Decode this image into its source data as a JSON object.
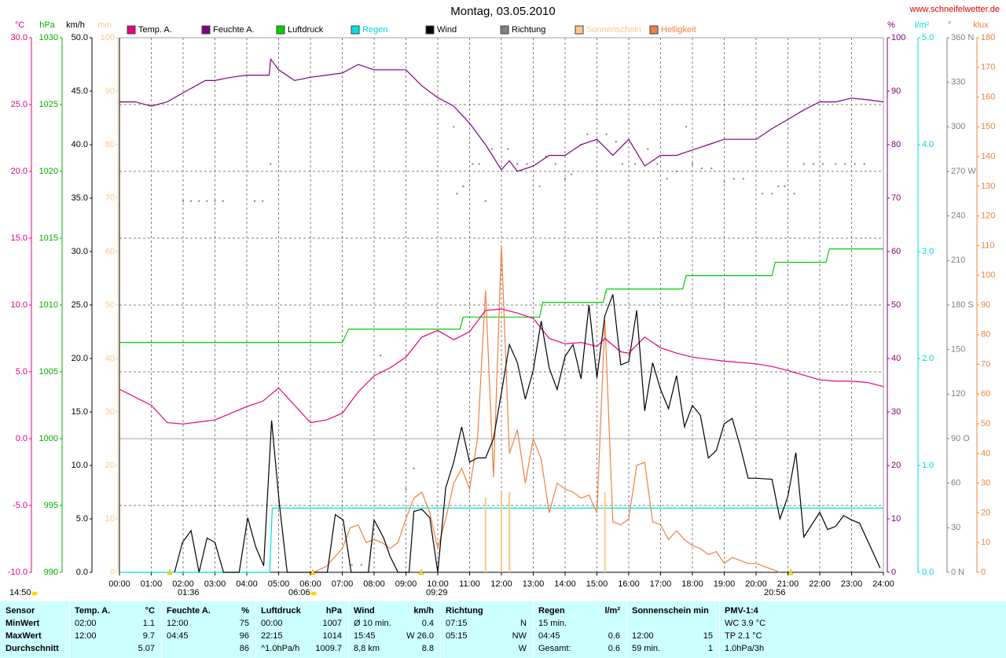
{
  "chart_data": {
    "type": "line",
    "title": "Montag, 03.05.2010",
    "source": "www.schneifelwetter.de",
    "xlim": [
      0,
      24
    ],
    "xticks": [
      {
        "value": 0,
        "label": "00:00"
      },
      {
        "value": 1,
        "label": "01:00"
      },
      {
        "value": 2,
        "label": "02:00"
      },
      {
        "value": 3,
        "label": "03:00"
      },
      {
        "value": 4,
        "label": "04:00"
      },
      {
        "value": 5,
        "label": "05:00"
      },
      {
        "value": 6,
        "label": "06:00"
      },
      {
        "value": 7,
        "label": "07:00"
      },
      {
        "value": 8,
        "label": "08:00"
      },
      {
        "value": 9,
        "label": "09:00"
      },
      {
        "value": 10,
        "label": "10:00"
      },
      {
        "value": 11,
        "label": "11:00"
      },
      {
        "value": 12,
        "label": "12:00"
      },
      {
        "value": 13,
        "label": "13:00"
      },
      {
        "value": 14,
        "label": "14:00"
      },
      {
        "value": 15,
        "label": "15:00"
      },
      {
        "value": 16,
        "label": "16:00"
      },
      {
        "value": 17,
        "label": "17:00"
      },
      {
        "value": 18,
        "label": "18:00"
      },
      {
        "value": 19,
        "label": "19:00"
      },
      {
        "value": 20,
        "label": "20:00"
      },
      {
        "value": 21,
        "label": "21:00"
      },
      {
        "value": 22,
        "label": "22:00"
      },
      {
        "value": 23,
        "label": "23:00"
      },
      {
        "value": 24,
        "label": "24:00"
      }
    ],
    "grid": true,
    "axes": [
      {
        "name": "°C",
        "color": "#e6007e",
        "lim": [
          -10,
          30
        ],
        "ticks": [
          {
            "value": 30,
            "label": "30.0"
          },
          {
            "value": 25,
            "label": "25.0"
          },
          {
            "value": 20,
            "label": "20.0"
          },
          {
            "value": 15,
            "label": "15.0"
          },
          {
            "value": 10,
            "label": "10.0"
          },
          {
            "value": 5,
            "label": "5.0"
          },
          {
            "value": 0,
            "label": "0.0"
          },
          {
            "value": -5,
            "label": "-5.0"
          },
          {
            "value": -10,
            "label": "-10.0"
          }
        ]
      },
      {
        "name": "hPa",
        "color": "#00b000",
        "lim": [
          990,
          1030
        ],
        "ticks": [
          1030,
          1025,
          1020,
          1015,
          1010,
          1005,
          1000,
          995,
          990
        ]
      },
      {
        "name": "km/h",
        "color": "#000000",
        "lim": [
          0,
          50
        ],
        "ticks": [
          {
            "value": 50,
            "label": "50.0"
          },
          {
            "value": 45,
            "label": "45.0"
          },
          {
            "value": 40,
            "label": "40.0"
          },
          {
            "value": 35,
            "label": "35.0"
          },
          {
            "value": 30,
            "label": "30.0"
          },
          {
            "value": 25,
            "label": "25.0"
          },
          {
            "value": 20,
            "label": "20.0"
          },
          {
            "value": 15,
            "label": "15.0"
          },
          {
            "value": 10,
            "label": "10.0"
          },
          {
            "value": 5,
            "label": "5.0"
          },
          {
            "value": 0,
            "label": "0.0"
          }
        ]
      },
      {
        "name": "min",
        "color": "#ffc88c",
        "lim": [
          0,
          100
        ],
        "ticks": [
          100,
          90,
          80,
          70,
          60,
          50,
          40,
          30,
          20,
          10,
          0
        ]
      },
      {
        "name": "%",
        "color": "#800080",
        "lim": [
          0,
          100
        ],
        "ticks": [
          100,
          90,
          80,
          70,
          60,
          50,
          40,
          30,
          20,
          10,
          0
        ]
      },
      {
        "name": "l/m²",
        "color": "#00d8d8",
        "lim": [
          0,
          5
        ],
        "ticks": [
          {
            "value": 5,
            "label": "5.0"
          },
          {
            "value": 4,
            "label": "4.0"
          },
          {
            "value": 3,
            "label": "3.0"
          },
          {
            "value": 2,
            "label": "2.0"
          },
          {
            "value": 1,
            "label": "1.0"
          },
          {
            "value": 0,
            "label": "0.0"
          }
        ]
      },
      {
        "name": "°",
        "color": "#808080",
        "lim": [
          0,
          360
        ],
        "ticks": [
          {
            "value": 360,
            "label": "360 N"
          },
          330,
          300,
          {
            "value": 270,
            "label": "270 W"
          },
          240,
          210,
          {
            "value": 180,
            "label": "180 S"
          },
          150,
          120,
          {
            "value": 90,
            "label": "90 O"
          },
          60,
          30,
          {
            "value": 0,
            "label": "0 N"
          }
        ]
      },
      {
        "name": "klux",
        "color": "#f08040",
        "lim": [
          0,
          180
        ],
        "ticks": [
          180,
          170,
          160,
          150,
          140,
          130,
          120,
          110,
          100,
          90,
          80,
          70,
          60,
          50,
          40,
          30,
          20,
          10,
          0
        ]
      }
    ],
    "series": [
      {
        "name": "Temp. A.",
        "type": "line",
        "axis": 0,
        "color": "#e6007e",
        "legend_label_color": "#000000",
        "x": [
          0,
          1,
          1.5,
          2,
          3,
          4,
          4.5,
          5,
          5.5,
          6,
          6.5,
          7,
          7.5,
          8,
          8.5,
          9,
          9.5,
          10,
          10.5,
          11,
          11.5,
          12,
          12.5,
          13,
          13.5,
          14,
          14.5,
          15,
          15.25,
          15.75,
          16,
          16.5,
          17,
          17.5,
          18,
          19,
          20,
          20.5,
          21,
          22,
          22.5,
          23,
          23.5,
          24
        ],
        "values": [
          3.7,
          2.5,
          1.2,
          1.1,
          1.4,
          2.4,
          2.8,
          3.8,
          2.5,
          1.2,
          1.4,
          1.9,
          3.5,
          4.7,
          5.3,
          6.1,
          7.6,
          8.1,
          7.4,
          8.0,
          9.6,
          9.7,
          9.4,
          9.0,
          7.5,
          7.1,
          7.2,
          6.9,
          7.5,
          6.5,
          6.4,
          7.6,
          6.8,
          6.4,
          6.1,
          5.8,
          5.6,
          5.4,
          5.1,
          4.4,
          4.3,
          4.3,
          4.2,
          3.9
        ]
      },
      {
        "name": "Feuchte A.",
        "type": "line",
        "axis": 4,
        "color": "#800080",
        "legend_label_color": "#000000",
        "x": [
          0,
          0.5,
          1,
          1.5,
          2,
          2.7,
          3,
          3.5,
          4,
          4.7,
          4.75,
          5,
          5.5,
          6,
          6.5,
          7,
          7.5,
          8,
          9,
          9.5,
          10,
          10.5,
          11,
          11.5,
          12,
          12.25,
          12.5,
          13,
          13.5,
          14,
          14.5,
          15,
          15.5,
          16,
          16.5,
          17,
          17.5,
          18,
          18.5,
          19,
          20,
          20.5,
          21,
          21.5,
          22,
          22.5,
          23,
          23.5,
          24
        ],
        "values": [
          88,
          88,
          87.2,
          88,
          89.7,
          92,
          92,
          92.6,
          93,
          93,
          96,
          94,
          92,
          92.6,
          93,
          93.4,
          95,
          94,
          94,
          91,
          88.8,
          87.2,
          84,
          80,
          75.3,
          77,
          75,
          76,
          78,
          78,
          80,
          81,
          78,
          81,
          76,
          78,
          78,
          79,
          80,
          81,
          81,
          83,
          84.7,
          86.5,
          88,
          88,
          88.7,
          88.4,
          88
        ]
      },
      {
        "name": "Luftdruck",
        "type": "line",
        "axis": 1,
        "color": "#00d000",
        "legend_label_color": "#000000",
        "x": [
          0,
          7,
          7.2,
          10.7,
          10.8,
          13.2,
          13.3,
          15.2,
          15.3,
          17.7,
          17.8,
          20.5,
          20.6,
          22.2,
          22.3,
          24
        ],
        "values": [
          1007.2,
          1007.2,
          1008.2,
          1008.2,
          1009.1,
          1009.1,
          1010.2,
          1010.2,
          1011.2,
          1011.2,
          1012.2,
          1012.2,
          1013.2,
          1013.2,
          1014.2,
          1014.2
        ]
      },
      {
        "name": "Regen",
        "type": "line",
        "axis": 5,
        "color": "#00e0e0",
        "legend_label_color": "#00d8d8",
        "x": [
          0,
          4.72,
          4.8,
          24
        ],
        "values": [
          0,
          0,
          0.6,
          0.6
        ]
      },
      {
        "name": "Wind",
        "type": "line",
        "axis": 2,
        "color": "#000000",
        "legend_label_color": "#000000",
        "x": [
          1.73,
          1.98,
          2.25,
          2.5,
          2.75,
          3.0,
          3.27,
          3.76,
          4.03,
          4.28,
          4.53,
          4.78,
          5.02,
          5.27,
          6.53,
          6.78,
          7.03,
          7.28,
          7.82,
          8.0,
          8.3,
          8.5,
          8.75,
          9.1,
          9.25,
          9.5,
          9.75,
          10.0,
          10.25,
          10.5,
          10.75,
          11.0,
          11.25,
          11.5,
          11.75,
          12.0,
          12.25,
          12.5,
          12.75,
          13.0,
          13.25,
          13.5,
          13.75,
          14.0,
          14.25,
          14.5,
          14.75,
          15.0,
          15.25,
          15.5,
          15.75,
          16.0,
          16.25,
          16.5,
          16.75,
          17.0,
          17.25,
          17.5,
          17.75,
          18.0,
          18.25,
          18.5,
          18.75,
          19.0,
          19.25,
          19.5,
          19.75,
          20.0,
          20.5,
          20.75,
          21.0,
          21.25,
          21.5,
          22.0,
          22.25,
          22.5,
          22.75,
          23.0,
          23.25,
          23.9
        ],
        "values": [
          0,
          2.8,
          3.9,
          0,
          3.2,
          2.8,
          0,
          0,
          5.1,
          2.4,
          0.6,
          14.2,
          6.5,
          0,
          0,
          5.4,
          4.9,
          0,
          0,
          4.9,
          3.2,
          1.5,
          0,
          0,
          5.7,
          5.9,
          5.1,
          0,
          7.9,
          10.3,
          13.6,
          10.3,
          10.7,
          10.7,
          12.5,
          16.8,
          21.3,
          19.6,
          16.2,
          18.9,
          23.5,
          19.1,
          17.1,
          20.2,
          21.3,
          18.1,
          25.0,
          18.2,
          24.0,
          26.0,
          19.4,
          19.7,
          24.5,
          15.1,
          19.6,
          17.1,
          15.3,
          18.4,
          13.6,
          15.6,
          14.7,
          10.7,
          11.4,
          13.9,
          14.4,
          11.8,
          8.8,
          8.8,
          8.7,
          5.0,
          7.1,
          11.2,
          3.3,
          5.6,
          4.0,
          4.3,
          5.3,
          4.9,
          4.6,
          0.4
        ]
      },
      {
        "name": "Richtung",
        "type": "dots",
        "axis": 6,
        "color": "#808080",
        "legend_label_color": "#000000",
        "x": [
          2.0,
          2.25,
          2.5,
          2.75,
          3.0,
          3.25,
          4.25,
          4.5,
          4.75,
          7.3,
          7.6,
          8.2,
          9.0,
          9.25,
          10.5,
          10.6,
          10.8,
          11.1,
          11.3,
          11.5,
          11.7,
          12.2,
          12.5,
          12.8,
          13.2,
          13.4,
          13.7,
          14.0,
          14.2,
          14.5,
          14.7,
          15.0,
          15.3,
          15.6,
          15.8,
          16.2,
          16.6,
          16.9,
          17.2,
          17.5,
          17.8,
          18.0,
          18.3,
          18.6,
          19.0,
          19.3,
          19.6,
          20.2,
          20.5,
          20.7,
          20.9,
          21.2,
          21.5,
          21.8,
          22.1,
          22.5,
          22.8,
          23.1,
          23.4
        ],
        "values": [
          250,
          250,
          250,
          250,
          250,
          250,
          250,
          250,
          275,
          5,
          5,
          146,
          56,
          70,
          300,
          255,
          260,
          275,
          275,
          250,
          285,
          285,
          275,
          275,
          260,
          280,
          275,
          265,
          268,
          288,
          295,
          290,
          295,
          290,
          275,
          275,
          285,
          275,
          265,
          270,
          300,
          275,
          272,
          272,
          263,
          265,
          265,
          255,
          255,
          260,
          260,
          255,
          275,
          275,
          275,
          275,
          275,
          275,
          275
        ]
      },
      {
        "name": "Sonnenschein",
        "type": "bar",
        "axis": 3,
        "color": "#ffc88c",
        "legend_label_color": "#ffc88c",
        "x": [
          11.5,
          12.0,
          12.25,
          15.25
        ],
        "values": [
          14,
          15,
          15,
          15
        ]
      },
      {
        "name": "Helligkeit",
        "type": "line",
        "axis": 7,
        "color": "#f08040",
        "legend_label_color": "#f08040",
        "x": [
          6.1,
          6.5,
          7.0,
          7.25,
          7.5,
          7.75,
          8.0,
          8.25,
          8.5,
          8.75,
          9.0,
          9.25,
          9.5,
          9.75,
          10.0,
          10.25,
          10.5,
          10.75,
          11.0,
          11.25,
          11.5,
          11.75,
          12.0,
          12.25,
          12.5,
          12.75,
          13.0,
          13.25,
          13.5,
          13.75,
          14.0,
          14.25,
          14.5,
          14.75,
          15.0,
          15.25,
          15.5,
          15.75,
          16.0,
          16.25,
          16.5,
          16.75,
          17.0,
          17.25,
          17.5,
          17.75,
          18.0,
          18.25,
          18.5,
          18.75,
          19.0,
          19.25,
          19.5,
          19.75,
          20.0,
          20.25,
          20.5,
          20.75
        ],
        "values": [
          0,
          2,
          8,
          15,
          16,
          10,
          11,
          10,
          8,
          10,
          18,
          25,
          27,
          20,
          8,
          18,
          30,
          35,
          28,
          45,
          95,
          32,
          110,
          40,
          48,
          30,
          45,
          38,
          20,
          30,
          28,
          27,
          25,
          26,
          20,
          85,
          17,
          16,
          18,
          36,
          37,
          17,
          16,
          11,
          14,
          11,
          9,
          8,
          6,
          7,
          3,
          5,
          4,
          3,
          3,
          2,
          1,
          0
        ]
      }
    ],
    "annotations": [
      "14:50",
      "01:36",
      "06:06",
      "09:29",
      "20:56"
    ]
  },
  "table": {
    "columns": [
      {
        "title": "Sensor"
      },
      {
        "title": "Temp. A.",
        "unit": "°C"
      },
      {
        "title": "Feuchte A.",
        "unit": "%"
      },
      {
        "title": "Luftdruck",
        "unit": "hPa"
      },
      {
        "title": "Wind",
        "unit": "km/h"
      },
      {
        "title": "Richtung"
      },
      {
        "title": "Regen",
        "unit": "l/m²"
      },
      {
        "title": "Sonnenschein min"
      },
      {
        "title": "PMV-1:4"
      }
    ],
    "rows": [
      {
        "label": "MinWert",
        "cells": [
          [
            "02:00",
            "1.1"
          ],
          [
            "12:00",
            "75"
          ],
          [
            "00:00",
            "1007"
          ],
          [
            "Ø 10 min.",
            "0.4"
          ],
          [
            "07:15",
            "N"
          ],
          [
            "15 min."
          ],
          [],
          [
            "WC 3.9 °C"
          ]
        ]
      },
      {
        "label": "MaxWert",
        "cells": [
          [
            "12:00",
            "9.7"
          ],
          [
            "04:45",
            "96"
          ],
          [
            "22:15",
            "1014"
          ],
          [
            "15:45",
            "W 26.0"
          ],
          [
            "05:15",
            "NW"
          ],
          [
            "04:45",
            "0.6"
          ],
          [
            "12:00",
            "15"
          ],
          [
            "TP 2.1 °C"
          ]
        ]
      },
      {
        "label": "Durchschnitt",
        "cells": [
          [
            null,
            "5.07"
          ],
          [
            null,
            "86"
          ],
          [
            "^1.0hPa/h",
            "1009.7"
          ],
          [
            "8,8 km",
            "8.8"
          ],
          [
            null,
            "W"
          ],
          [
            "Gesamt:",
            "0.6"
          ],
          [
            "59 min.",
            "1"
          ],
          [
            "1.0hPa/3h"
          ]
        ]
      }
    ]
  }
}
